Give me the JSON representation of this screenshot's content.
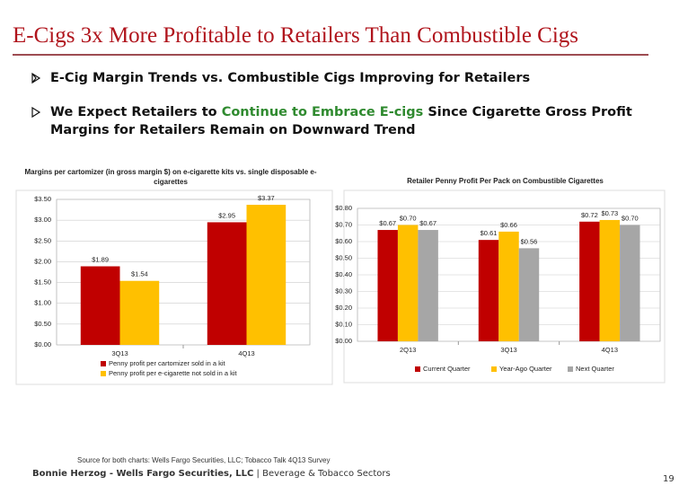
{
  "header": {
    "title": "E-Cigs 3x More Profitable to Retailers Than Combustible Cigs"
  },
  "bullets": [
    {
      "text": "E-Cig Margin Trends vs. Combustible Cigs Improving for Retailers"
    },
    {
      "before": "We Expect Retailers to",
      "highlight": "Continue to Embrace E-cigs",
      "after": "Since Cigarette Gross Profit Margins for Retailers Remain on Downward Trend"
    }
  ],
  "chart_data": [
    {
      "type": "bar",
      "title": "Margins per cartomizer (in gross margin $) on e-cigarette kits vs. single disposable e-cigarettes",
      "categories": [
        "3Q13",
        "4Q13"
      ],
      "series": [
        {
          "name": "Penny profit per cartomizer sold in a kit",
          "color": "#c00000",
          "values": [
            1.89,
            2.95
          ],
          "value_labels": [
            "$1.89",
            "$2.95"
          ]
        },
        {
          "name": "Penny profit per e-cigarette not sold in a kit",
          "color": "#ffc000",
          "values": [
            1.54,
            3.37
          ],
          "value_labels": [
            "$1.54",
            "$3.37"
          ]
        }
      ],
      "ylim": [
        0,
        3.5
      ],
      "yticks": [
        {
          "value": 0,
          "label": "$0.00"
        },
        {
          "value": 0.5,
          "label": "$0.50"
        },
        {
          "value": 1,
          "label": "$1.00"
        },
        {
          "value": 1.5,
          "label": "$1.50"
        },
        {
          "value": 2,
          "label": "$2.00"
        },
        {
          "value": 2.5,
          "label": "$2.50"
        },
        {
          "value": 3,
          "label": "$3.00"
        },
        {
          "value": 3.5,
          "label": "$3.50"
        }
      ],
      "grid": true,
      "legend": "bottom-vertical"
    },
    {
      "type": "bar",
      "title": "Retailer Penny Profit Per Pack on Combustible Cigarettes",
      "categories": [
        "2Q13",
        "3Q13",
        "4Q13"
      ],
      "series": [
        {
          "name": "Current Quarter",
          "color": "#c00000",
          "values": [
            0.67,
            0.61,
            0.72
          ],
          "value_labels": [
            "$0.67",
            "$0.61",
            "$0.72"
          ]
        },
        {
          "name": "Year-Ago Quarter",
          "color": "#ffc000",
          "values": [
            0.7,
            0.66,
            0.73
          ],
          "value_labels": [
            "$0.70",
            "$0.66",
            "$0.73"
          ]
        },
        {
          "name": "Next Quarter",
          "color": "#a6a6a6",
          "values": [
            0.67,
            0.56,
            0.7
          ],
          "value_labels": [
            "$0.67",
            "$0.56",
            "$0.70"
          ]
        }
      ],
      "ylim": [
        0,
        0.8
      ],
      "yticks": [
        {
          "value": 0,
          "label": "$0.00"
        },
        {
          "value": 0.1,
          "label": "$0.10"
        },
        {
          "value": 0.2,
          "label": "$0.20"
        },
        {
          "value": 0.3,
          "label": "$0.30"
        },
        {
          "value": 0.4,
          "label": "$0.40"
        },
        {
          "value": 0.5,
          "label": "$0.50"
        },
        {
          "value": 0.6,
          "label": "$0.60"
        },
        {
          "value": 0.7,
          "label": "$0.70"
        },
        {
          "value": 0.8,
          "label": "$0.80"
        }
      ],
      "grid": true,
      "legend": "bottom-horizontal"
    }
  ],
  "source": "Source for both charts: Wells Fargo Securities, LLC; Tobacco Talk 4Q13 Survey",
  "footer": {
    "author": "Bonnie Herzog - Wells Fargo Securities, LLC",
    "section": "| Beverage & Tobacco Sectors",
    "page": "19"
  }
}
